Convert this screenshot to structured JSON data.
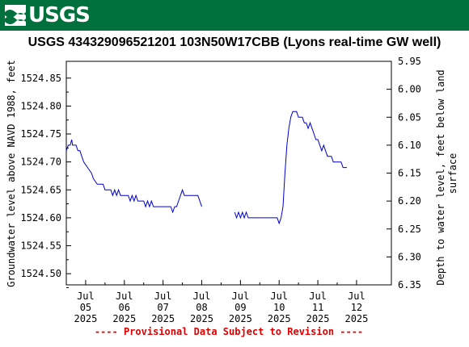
{
  "header": {
    "agency": "USGS"
  },
  "chart_data": {
    "type": "line",
    "title": "USGS 434329096521201 103N50W17CBB (Lyons real-time GW well)",
    "ylabel": "Groundwater level above NAVD 1988, feet",
    "y2label_line1": "Depth to water level, feet below land",
    "y2label_line2": "surface",
    "ylim": [
      1524.48,
      1524.88
    ],
    "y2lim": [
      6.35,
      5.95
    ],
    "yticks": [
      "1524.85",
      "1524.80",
      "1524.75",
      "1524.70",
      "1524.65",
      "1524.60",
      "1524.55",
      "1524.50"
    ],
    "y2ticks": [
      "5.95",
      "6.00",
      "6.05",
      "6.10",
      "6.15",
      "6.20",
      "6.25",
      "6.30",
      "6.35"
    ],
    "xlim": [
      0,
      8.4
    ],
    "xticks": [
      {
        "month": "Jul",
        "day": "05",
        "year": "2025"
      },
      {
        "month": "Jul",
        "day": "06",
        "year": "2025"
      },
      {
        "month": "Jul",
        "day": "07",
        "year": "2025"
      },
      {
        "month": "Jul",
        "day": "08",
        "year": "2025"
      },
      {
        "month": "Jul",
        "day": "09",
        "year": "2025"
      },
      {
        "month": "Jul",
        "day": "10",
        "year": "2025"
      },
      {
        "month": "Jul",
        "day": "11",
        "year": "2025"
      },
      {
        "month": "Jul",
        "day": "12",
        "year": "2025"
      }
    ],
    "series": [
      {
        "color": "#0000cc",
        "segments": [
          [
            [
              0.0,
              1524.72
            ],
            [
              0.05,
              1524.73
            ],
            [
              0.1,
              1524.73
            ],
            [
              0.14,
              1524.74
            ],
            [
              0.16,
              1524.73
            ],
            [
              0.25,
              1524.73
            ],
            [
              0.3,
              1524.72
            ],
            [
              0.35,
              1524.72
            ],
            [
              0.4,
              1524.71
            ],
            [
              0.45,
              1524.7
            ],
            [
              0.55,
              1524.69
            ],
            [
              0.65,
              1524.68
            ],
            [
              0.7,
              1524.67
            ],
            [
              0.8,
              1524.66
            ],
            [
              0.95,
              1524.66
            ],
            [
              1.0,
              1524.65
            ],
            [
              1.15,
              1524.65
            ],
            [
              1.2,
              1524.64
            ],
            [
              1.25,
              1524.65
            ],
            [
              1.3,
              1524.64
            ],
            [
              1.35,
              1524.65
            ],
            [
              1.4,
              1524.64
            ],
            [
              1.6,
              1524.64
            ],
            [
              1.65,
              1524.63
            ],
            [
              1.7,
              1524.64
            ],
            [
              1.75,
              1524.63
            ],
            [
              1.8,
              1524.64
            ],
            [
              1.85,
              1524.63
            ],
            [
              2.0,
              1524.63
            ],
            [
              2.05,
              1524.62
            ],
            [
              2.1,
              1524.63
            ],
            [
              2.15,
              1524.62
            ],
            [
              2.2,
              1524.63
            ],
            [
              2.25,
              1524.62
            ],
            [
              2.6,
              1524.62
            ],
            [
              2.7,
              1524.62
            ],
            [
              2.75,
              1524.61
            ],
            [
              2.8,
              1524.62
            ],
            [
              2.85,
              1524.62
            ],
            [
              2.9,
              1524.63
            ],
            [
              2.95,
              1524.64
            ],
            [
              3.0,
              1524.65
            ],
            [
              3.05,
              1524.64
            ],
            [
              3.4,
              1524.64
            ],
            [
              3.45,
              1524.63
            ],
            [
              3.5,
              1524.62
            ]
          ],
          [
            [
              4.35,
              1524.61
            ],
            [
              4.4,
              1524.6
            ],
            [
              4.45,
              1524.61
            ],
            [
              4.5,
              1524.6
            ],
            [
              4.55,
              1524.61
            ],
            [
              4.6,
              1524.6
            ],
            [
              4.65,
              1524.61
            ],
            [
              4.7,
              1524.6
            ],
            [
              5.45,
              1524.6
            ],
            [
              5.5,
              1524.59
            ],
            [
              5.55,
              1524.6
            ],
            [
              5.6,
              1524.62
            ],
            [
              5.65,
              1524.68
            ],
            [
              5.7,
              1524.73
            ],
            [
              5.75,
              1524.76
            ],
            [
              5.8,
              1524.78
            ],
            [
              5.85,
              1524.79
            ],
            [
              5.95,
              1524.79
            ],
            [
              6.0,
              1524.78
            ],
            [
              6.1,
              1524.78
            ],
            [
              6.15,
              1524.77
            ],
            [
              6.2,
              1524.77
            ],
            [
              6.25,
              1524.76
            ],
            [
              6.3,
              1524.77
            ],
            [
              6.35,
              1524.76
            ],
            [
              6.4,
              1524.75
            ],
            [
              6.45,
              1524.74
            ],
            [
              6.5,
              1524.74
            ],
            [
              6.55,
              1524.73
            ],
            [
              6.6,
              1524.72
            ],
            [
              6.65,
              1524.73
            ],
            [
              6.7,
              1524.72
            ],
            [
              6.75,
              1524.71
            ],
            [
              6.85,
              1524.71
            ],
            [
              6.9,
              1524.7
            ],
            [
              7.1,
              1524.7
            ],
            [
              7.15,
              1524.69
            ],
            [
              7.25,
              1524.69
            ]
          ]
        ]
      }
    ],
    "footnote": "---- Provisional Data Subject to Revision ----"
  }
}
